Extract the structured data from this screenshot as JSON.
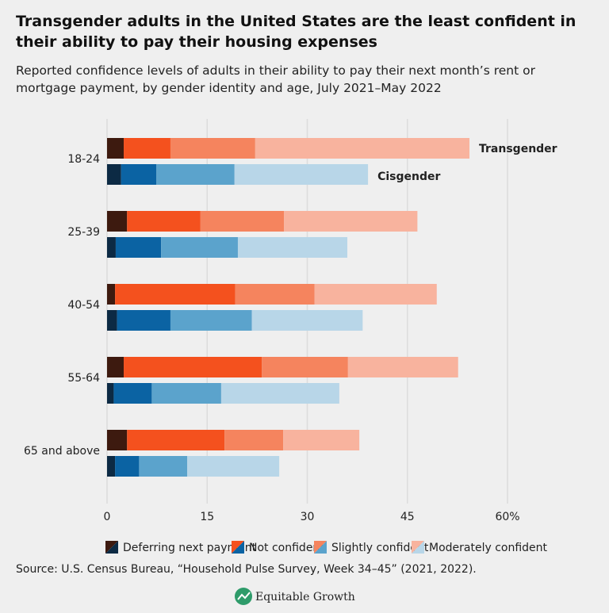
{
  "chart_data": {
    "type": "bar",
    "orientation": "horizontal",
    "stacked": true,
    "title": "Transgender adults in the United States are the least confident in their ability to pay their housing expenses",
    "subtitle": "Reported confidence levels of adults in their ability to pay their next month’s rent or mortgage payment, by gender identity and age, July 2021–May 2022",
    "categories": [
      "18-24",
      "25-39",
      "40-54",
      "55-64",
      "65 and above"
    ],
    "groups": [
      {
        "name": "Transgender",
        "color": "#f0561f"
      },
      {
        "name": "Cisgender",
        "color": "#1b6aa5"
      }
    ],
    "series": [
      {
        "name": "Deferring next payment",
        "colors": [
          "#3d1a0f",
          "#0c2a44"
        ],
        "values": [
          [
            2.5,
            3.0,
            1.2,
            2.5,
            3.0
          ],
          [
            2.1,
            1.3,
            1.5,
            1.0,
            1.2
          ]
        ]
      },
      {
        "name": "Not confident",
        "colors": [
          "#f4511e",
          "#0b63a3"
        ],
        "values": [
          [
            7.0,
            11.0,
            18.0,
            20.7,
            14.6
          ],
          [
            5.3,
            6.8,
            8.0,
            5.7,
            3.6
          ]
        ]
      },
      {
        "name": "Slightly confident",
        "colors": [
          "#f5845e",
          "#5ba3cc"
        ],
        "values": [
          [
            12.7,
            12.5,
            11.9,
            12.9,
            8.8
          ],
          [
            11.7,
            11.5,
            12.2,
            10.4,
            7.2
          ]
        ]
      },
      {
        "name": "Moderately confident",
        "colors": [
          "#f8b39e",
          "#b8d6e8"
        ],
        "values": [
          [
            32.1,
            20.0,
            18.3,
            16.5,
            11.4
          ],
          [
            20.0,
            16.4,
            16.6,
            17.7,
            13.8
          ]
        ]
      }
    ],
    "xlim": [
      0,
      60
    ],
    "xticks": [
      0,
      15,
      30,
      45,
      {
        "value": 60,
        "label": "60%"
      }
    ],
    "grid": true,
    "source": "Source: U.S. Census Bureau, “Household Pulse Survey, Week 34–45” (2021, 2022).",
    "brand": "Equitable Growth"
  }
}
